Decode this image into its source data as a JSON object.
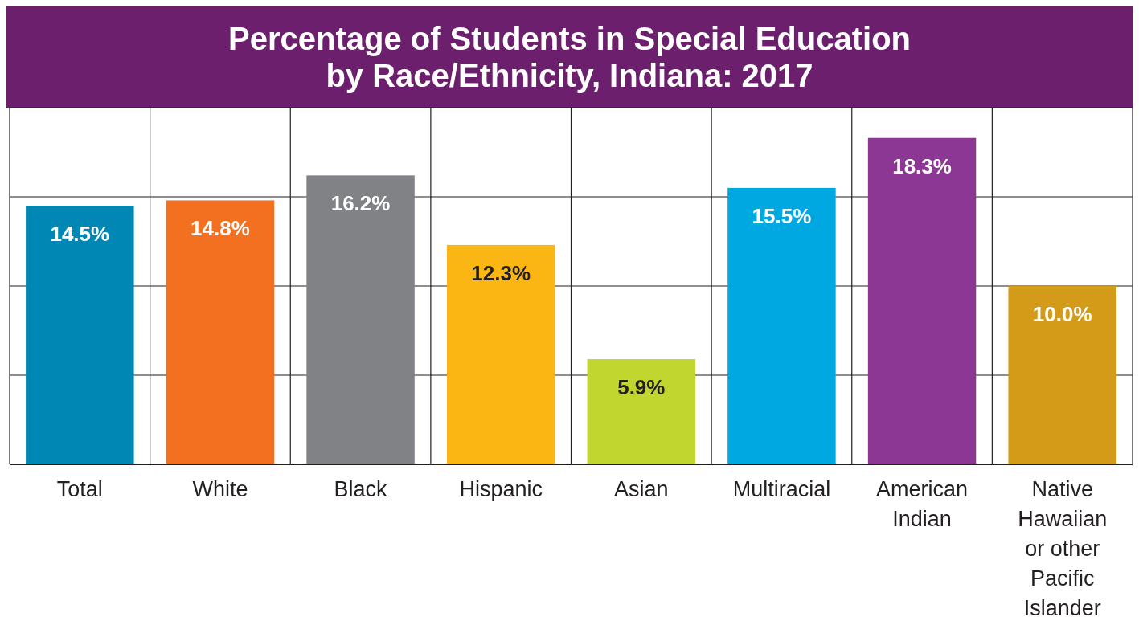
{
  "chart_data": {
    "type": "bar",
    "title": "Percentage of Students in Special Education by Race/Ethnicity, Indiana: 2017",
    "categories": [
      "Total",
      "White",
      "Black",
      "Hispanic",
      "Asian",
      "Multiracial",
      "American Indian",
      "Native Hawaiian or other Pacific Islander"
    ],
    "values": [
      14.5,
      14.8,
      16.2,
      12.3,
      5.9,
      15.5,
      18.3,
      10.0
    ],
    "colors": [
      "#0087b4",
      "#f37021",
      "#808285",
      "#fbb614",
      "#c1d72f",
      "#00a8e1",
      "#8c3793",
      "#d39b17"
    ],
    "value_labels": [
      "14.5%",
      "14.8%",
      "16.2%",
      "12.3%",
      "5.9%",
      "15.5%",
      "18.3%",
      "10.0%"
    ],
    "ylim": [
      0,
      20
    ],
    "yticks": [
      {
        "value": 0,
        "label": null
      },
      {
        "value": 5,
        "label": null
      },
      {
        "value": 10,
        "label": null
      },
      {
        "value": 15,
        "label": null
      },
      {
        "value": 20,
        "label": null
      }
    ],
    "tick_labels": "x",
    "grid": true
  }
}
